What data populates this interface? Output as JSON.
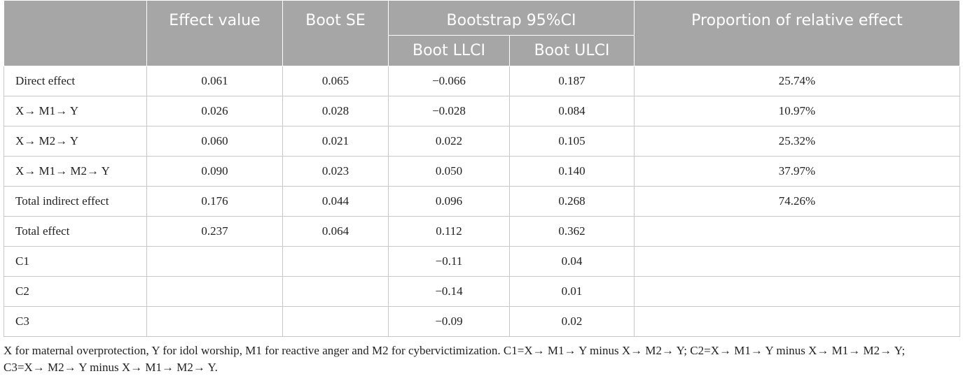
{
  "table": {
    "headers": {
      "row_label": "",
      "effect_value": "Effect value",
      "boot_se": "Boot SE",
      "bootstrap_ci": "Bootstrap 95%CI",
      "boot_llci": "Boot LLCI",
      "boot_ulci": "Boot ULCI",
      "proportion": "Proportion of relative effect"
    },
    "rows": [
      {
        "label": "Direct effect",
        "effect": "0.061",
        "se": "0.065",
        "llci": "−0.066",
        "ulci": "0.187",
        "proportion": "25.74%"
      },
      {
        "label": "X→  M1→  Y",
        "effect": "0.026",
        "se": "0.028",
        "llci": "−0.028",
        "ulci": "0.084",
        "proportion": "10.97%"
      },
      {
        "label": "X→  M2→  Y",
        "effect": "0.060",
        "se": "0.021",
        "llci": "0.022",
        "ulci": "0.105",
        "proportion": "25.32%"
      },
      {
        "label": "X→  M1→  M2→  Y",
        "effect": "0.090",
        "se": "0.023",
        "llci": "0.050",
        "ulci": "0.140",
        "proportion": "37.97%"
      },
      {
        "label": "Total indirect effect",
        "effect": "0.176",
        "se": "0.044",
        "llci": "0.096",
        "ulci": "0.268",
        "proportion": "74.26%"
      },
      {
        "label": "Total effect",
        "effect": "0.237",
        "se": "0.064",
        "llci": "0.112",
        "ulci": "0.362",
        "proportion": ""
      },
      {
        "label": "C1",
        "effect": "",
        "se": "",
        "llci": "−0.11",
        "ulci": "0.04",
        "proportion": ""
      },
      {
        "label": "C2",
        "effect": "",
        "se": "",
        "llci": "−0.14",
        "ulci": "0.01",
        "proportion": ""
      },
      {
        "label": "C3",
        "effect": "",
        "se": "",
        "llci": "−0.09",
        "ulci": "0.02",
        "proportion": ""
      }
    ]
  },
  "footnote": {
    "line1": "X for maternal overprotection, Y for idol worship, M1 for reactive anger and M2 for cybervictimization. C1=X→  M1→  Y minus X→  M2→  Y; C2=X→  M1→  Y minus X→  M1→  M2→  Y;",
    "line2": "C3=X→  M2→  Y minus X→  M1→  M2→  Y."
  }
}
